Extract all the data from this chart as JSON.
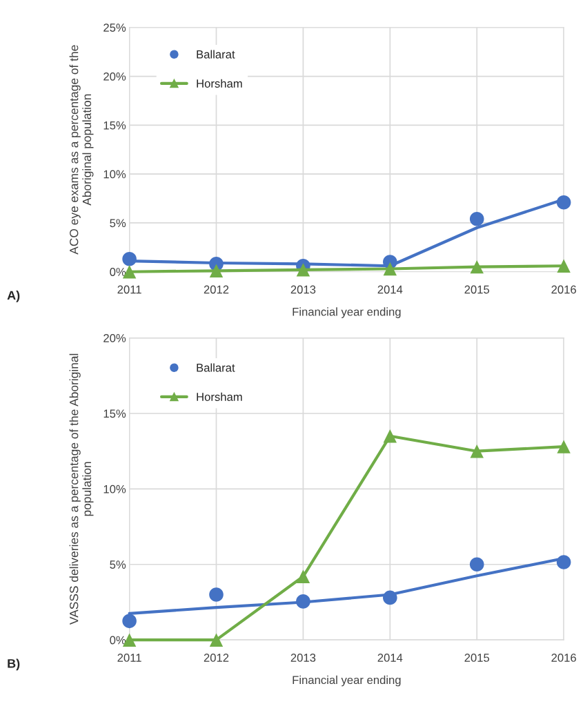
{
  "chart_data": [
    {
      "type": "scatter",
      "categories": [
        "2011",
        "2012",
        "2013",
        "2014",
        "2015",
        "2016"
      ],
      "xlabel": "Financial year ending",
      "ylabel": "ACO eye exams as a percentage of the Aboriginal population",
      "ylim": [
        0,
        25
      ],
      "yticks": [
        {
          "value": 0,
          "label": "0%"
        },
        {
          "value": 5,
          "label": "5%"
        },
        {
          "value": 10,
          "label": "10%"
        },
        {
          "value": 15,
          "label": "15%"
        },
        {
          "value": 20,
          "label": "20%"
        },
        {
          "value": 25,
          "label": "25%"
        }
      ],
      "grid": true,
      "legend": "top left",
      "annotations": [
        "A)"
      ],
      "series": [
        {
          "name": "Ballarat",
          "color": "#4472c4",
          "values": [
            1.3,
            0.8,
            0.6,
            1.0,
            5.4,
            7.1
          ],
          "marker": "circle"
        },
        {
          "type": "line",
          "name": "Horsham",
          "color": "#70ad47",
          "values": [
            0,
            0.1,
            0.2,
            0.3,
            0.5,
            0.6
          ],
          "marker": "triangle"
        },
        {
          "type": "line",
          "color": "#4472c4",
          "values": [
            1.1,
            0.9,
            0.8,
            0.6,
            4.5,
            7.4
          ],
          "marker": "none"
        }
      ]
    },
    {
      "type": "scatter",
      "categories": [
        "2011",
        "2012",
        "2013",
        "2014",
        "2015",
        "2016"
      ],
      "xlabel": "Financial year ending",
      "ylabel": "VASSS deliveries as a percentage of the Aboriginal population",
      "ylim": [
        0,
        20
      ],
      "yticks": [
        {
          "value": 0,
          "label": "0%"
        },
        {
          "value": 5,
          "label": "5%"
        },
        {
          "value": 10,
          "label": "10%"
        },
        {
          "value": 15,
          "label": "15%"
        },
        {
          "value": 20,
          "label": "20%"
        }
      ],
      "grid": true,
      "legend": "top left",
      "annotations": [
        "B)"
      ],
      "series": [
        {
          "name": "Ballarat",
          "color": "#4472c4",
          "values": [
            1.25,
            3.0,
            2.55,
            2.8,
            5.0,
            5.15
          ],
          "marker": "circle"
        },
        {
          "type": "line",
          "name": "Horsham",
          "color": "#70ad47",
          "values": [
            0,
            0,
            4.2,
            13.5,
            12.5,
            12.8
          ],
          "marker": "triangle"
        },
        {
          "type": "line",
          "color": "#4472c4",
          "values": [
            1.75,
            2.15,
            2.5,
            3.0,
            4.25,
            5.4
          ],
          "marker": "none"
        }
      ]
    }
  ]
}
